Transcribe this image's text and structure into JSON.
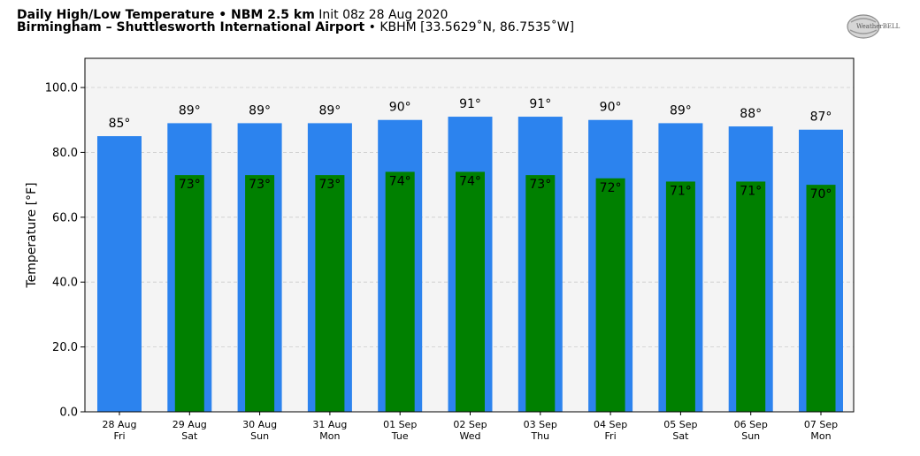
{
  "header": {
    "title_bold": "Daily High/Low Temperature • NBM 2.5 km",
    "init_text": "Init 08z 28 Aug 2020",
    "location_bold": "Birmingham – Shuttlesworth International Airport",
    "location_rest": "• KBHM [33.5629˚N, 86.7535˚W]"
  },
  "logo": {
    "text": "WeatherBELL"
  },
  "colors": {
    "high": "#2c83ee",
    "low": "#008000",
    "plot_bg": "#f4f4f4",
    "grid": "#cccccc"
  },
  "chart_data": {
    "type": "bar",
    "ylabel": "Temperature [°F]",
    "ylim": [
      0,
      109
    ],
    "yticks": [
      0,
      20,
      40,
      60,
      80,
      100
    ],
    "ytick_labels": [
      "0.0",
      "20.0",
      "40.0",
      "60.0",
      "80.0",
      "100.0"
    ],
    "grid": "horizontal dashed",
    "categories": [
      {
        "date": "28 Aug",
        "day": "Fri"
      },
      {
        "date": "29 Aug",
        "day": "Sat"
      },
      {
        "date": "30 Aug",
        "day": "Sun"
      },
      {
        "date": "31 Aug",
        "day": "Mon"
      },
      {
        "date": "01 Sep",
        "day": "Tue"
      },
      {
        "date": "02 Sep",
        "day": "Wed"
      },
      {
        "date": "03 Sep",
        "day": "Thu"
      },
      {
        "date": "04 Sep",
        "day": "Fri"
      },
      {
        "date": "05 Sep",
        "day": "Sat"
      },
      {
        "date": "06 Sep",
        "day": "Sun"
      },
      {
        "date": "07 Sep",
        "day": "Mon"
      }
    ],
    "series": [
      {
        "key": "high",
        "values": [
          85,
          89,
          89,
          89,
          90,
          91,
          91,
          90,
          89,
          88,
          87
        ],
        "labels": [
          "85°",
          "89°",
          "89°",
          "89°",
          "90°",
          "91°",
          "91°",
          "90°",
          "89°",
          "88°",
          "87°"
        ]
      },
      {
        "key": "low",
        "values": [
          null,
          73,
          73,
          73,
          74,
          74,
          73,
          72,
          71,
          71,
          70
        ],
        "labels": [
          "",
          "73°",
          "73°",
          "73°",
          "74°",
          "74°",
          "73°",
          "72°",
          "71°",
          "71°",
          "70°"
        ]
      }
    ]
  }
}
